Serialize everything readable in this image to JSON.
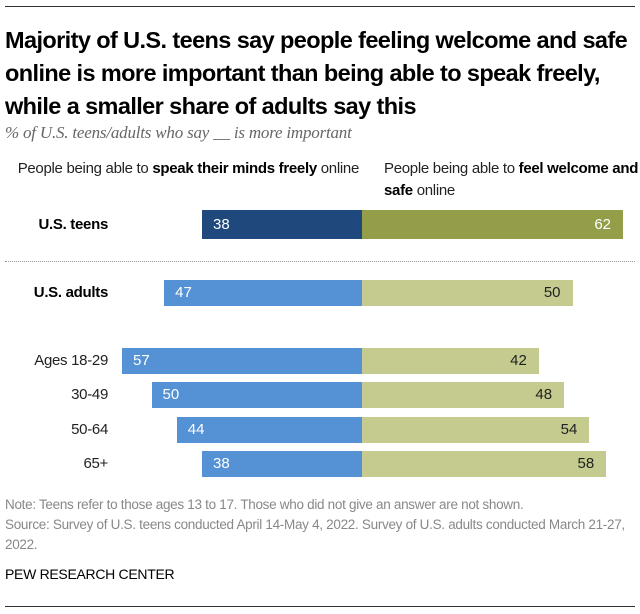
{
  "title": "Majority of U.S. teens say people feeling welcome and safe online is more important than being able to speak freely, while a smaller share of adults say this",
  "subtitle": "% of U.S. teens/adults who say __ is more important",
  "legend": {
    "left": {
      "pre": "People being able to ",
      "bold": "speak their minds freely",
      "post": " online"
    },
    "right": {
      "pre": "People being able to ",
      "bold": "feel welcome and safe",
      "post": " online"
    }
  },
  "colors": {
    "teens_left": "#1f497d",
    "teens_right": "#949d48",
    "adults_left": "#5591d5",
    "adults_right": "#c5cb8f"
  },
  "note": "Note: Teens refer to those ages 13 to 17. Those who did not give an answer are not shown.",
  "source": "Source: Survey of U.S. teens conducted April 14-May 4, 2022. Survey of U.S. adults conducted March 21-27, 2022.",
  "brand": "PEW RESEARCH CENTER",
  "chart_data": {
    "type": "bar",
    "orientation": "horizontal-diverging",
    "title": "Majority of U.S. teens say people feeling welcome and safe online is more important than being able to speak freely, while a smaller share of adults say this",
    "subtitle": "% of U.S. teens/adults who say __ is more important",
    "categories": [
      "U.S. teens",
      "U.S. adults",
      "Ages 18-29",
      "30-49",
      "50-64",
      "65+"
    ],
    "series": [
      {
        "name": "People being able to speak their minds freely online",
        "values": [
          38,
          47,
          57,
          50,
          44,
          38
        ]
      },
      {
        "name": "People being able to feel welcome and safe online",
        "values": [
          62,
          50,
          42,
          48,
          54,
          58
        ]
      }
    ],
    "xlabel": "",
    "ylabel": "",
    "xlim": [
      0,
      100
    ],
    "grid": false,
    "legend_placement": "top"
  }
}
